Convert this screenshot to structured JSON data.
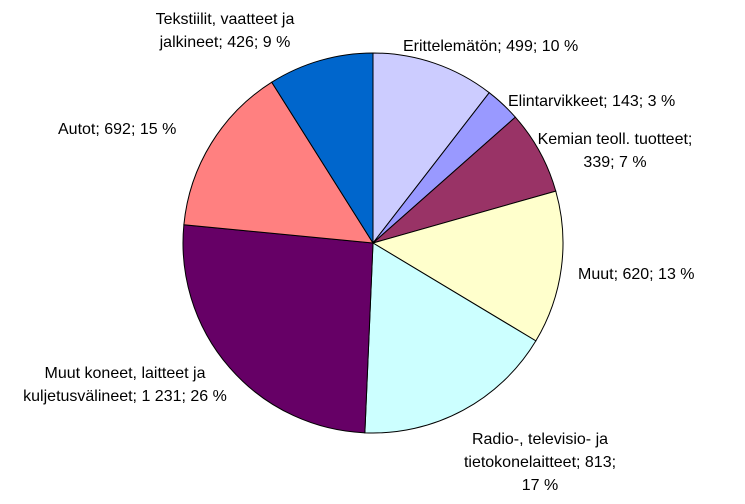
{
  "chart_data": {
    "type": "pie",
    "value_labels": [
      "Erittelemätön; 499; 10 %",
      "Elintarvikkeet; 143; 3 %",
      "Kemian teoll. tuotteet; 339; 7 %",
      "Muut; 620; 13 %",
      "Radio-, televisio- ja tietokonelaitteet; 813; 17 %",
      "Muut koneet, laitteet ja kuljetusvälineet; 1 231; 26 %",
      "Autot; 692; 15 %",
      "Tekstiilit, vaatteet ja jalkineet; 426; 9 %"
    ],
    "values": [
      499,
      143,
      339,
      620,
      813,
      1231,
      692,
      426
    ],
    "colors": [
      "#ccccff",
      "#9999ff",
      "#993366",
      "#ffffcc",
      "#ccffff",
      "#660066",
      "#ff8080",
      "#0066cc"
    ]
  }
}
